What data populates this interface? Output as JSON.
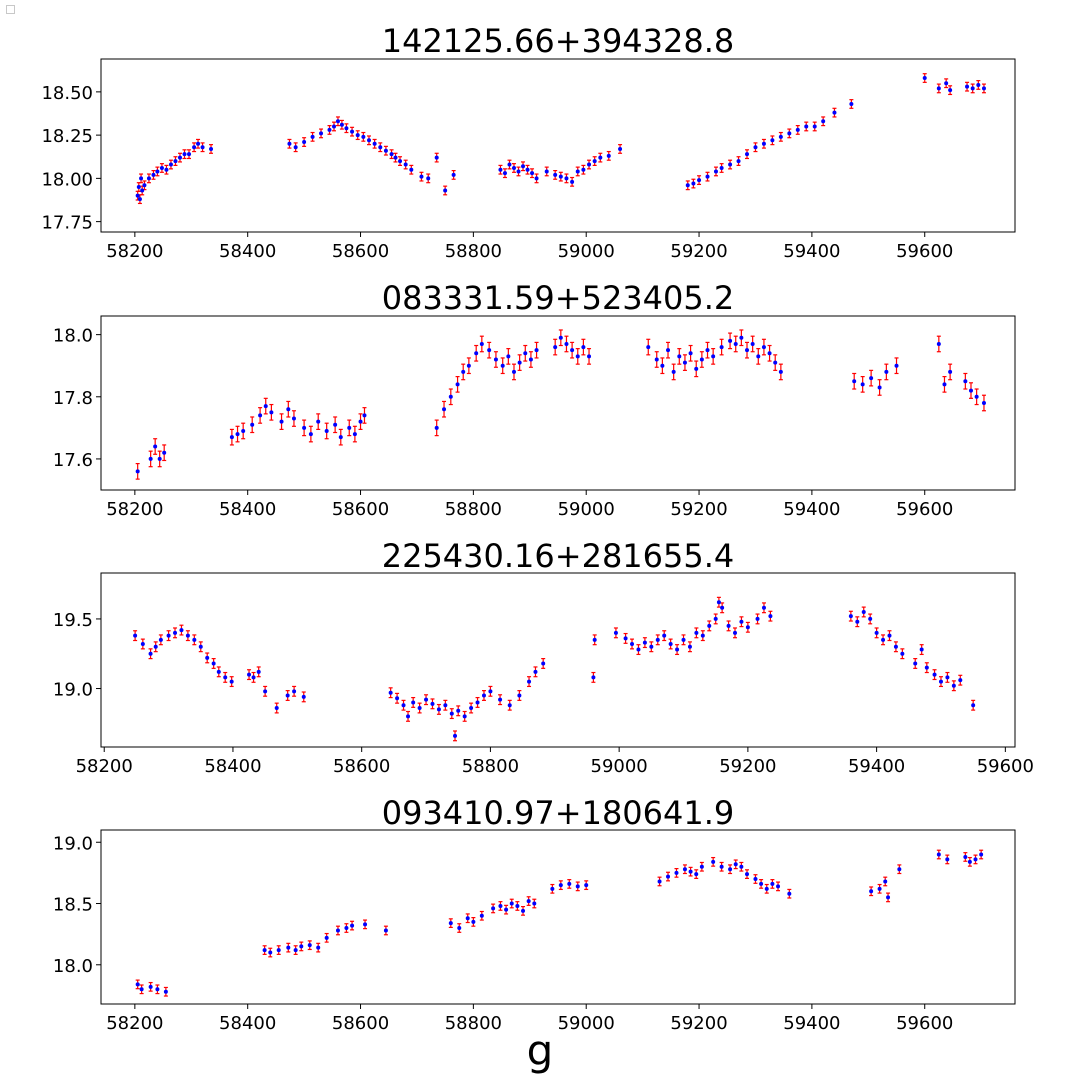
{
  "figure": {
    "band_label": "g"
  },
  "chart_data": [
    {
      "type": "scatter",
      "title": "142125.66+394328.8",
      "xlabel": "",
      "ylabel": "",
      "xlim": [
        58140,
        59760
      ],
      "ylim": [
        17.69,
        18.69
      ],
      "xticks": [
        58200,
        58400,
        58600,
        58800,
        59000,
        59200,
        59400,
        59600
      ],
      "yticks": [
        17.75,
        18.0,
        18.25,
        18.5
      ],
      "ytick_labels": [
        "17.75",
        "18.00",
        "18.25",
        "18.50"
      ],
      "grid": false,
      "x": [
        58205,
        58207,
        58209,
        58211,
        58213,
        58217,
        58225,
        58233,
        58240,
        58248,
        58256,
        58264,
        58272,
        58280,
        58288,
        58296,
        58305,
        58312,
        58320,
        58335,
        58474,
        58485,
        58500,
        58515,
        58530,
        58545,
        58553,
        58560,
        58567,
        58575,
        58585,
        58595,
        58605,
        58615,
        58625,
        58635,
        58645,
        58655,
        58662,
        58670,
        58680,
        58690,
        58708,
        58720,
        58735,
        58750,
        58765,
        58848,
        58856,
        58864,
        58872,
        58880,
        58888,
        58896,
        58904,
        58912,
        58930,
        58945,
        58955,
        58965,
        58975,
        58985,
        58995,
        59005,
        59015,
        59025,
        59040,
        59060,
        59180,
        59190,
        59200,
        59215,
        59230,
        59240,
        59255,
        59270,
        59285,
        59300,
        59315,
        59330,
        59345,
        59360,
        59375,
        59390,
        59405,
        59420,
        59440,
        59470,
        59600,
        59625,
        59638,
        59645,
        59675,
        59685,
        59695,
        59705
      ],
      "y": [
        17.9,
        17.95,
        17.88,
        18.0,
        17.93,
        17.96,
        18.0,
        18.02,
        18.04,
        18.06,
        18.05,
        18.08,
        18.1,
        18.12,
        18.14,
        18.14,
        18.18,
        18.2,
        18.18,
        18.17,
        18.2,
        18.18,
        18.21,
        18.24,
        18.26,
        18.28,
        18.3,
        18.33,
        18.31,
        18.29,
        18.27,
        18.25,
        18.24,
        18.22,
        18.2,
        18.18,
        18.16,
        18.14,
        18.12,
        18.1,
        18.08,
        18.05,
        18.01,
        18.0,
        18.12,
        17.93,
        18.02,
        18.05,
        18.03,
        18.08,
        18.06,
        18.04,
        18.07,
        18.05,
        18.03,
        18.0,
        18.04,
        18.02,
        18.01,
        18.0,
        17.98,
        18.04,
        18.05,
        18.08,
        18.1,
        18.12,
        18.13,
        18.17,
        17.96,
        17.97,
        17.99,
        18.01,
        18.04,
        18.06,
        18.08,
        18.1,
        18.14,
        18.18,
        18.2,
        18.22,
        18.24,
        18.26,
        18.28,
        18.3,
        18.3,
        18.33,
        18.38,
        18.43,
        18.58,
        18.52,
        18.55,
        18.51,
        18.53,
        18.52,
        18.54,
        18.52
      ],
      "yerr": 0.025,
      "error_color": "#ff0000",
      "marker_color": "#0000ff"
    },
    {
      "type": "scatter",
      "title": "083331.59+523405.2",
      "xlabel": "",
      "ylabel": "",
      "xlim": [
        58140,
        59760
      ],
      "ylim": [
        17.5,
        18.06
      ],
      "xticks": [
        58200,
        58400,
        58600,
        58800,
        59000,
        59200,
        59400,
        59600
      ],
      "yticks": [
        17.6,
        17.8,
        18.0
      ],
      "ytick_labels": [
        "17.6",
        "17.8",
        "18.0"
      ],
      "grid": false,
      "x": [
        58205,
        58228,
        58236,
        58244,
        58252,
        58372,
        58382,
        58392,
        58408,
        58422,
        58432,
        58442,
        58460,
        58472,
        58482,
        58500,
        58512,
        58525,
        58540,
        58555,
        58565,
        58580,
        58590,
        58600,
        58607,
        58735,
        58748,
        58760,
        58772,
        58782,
        58792,
        58805,
        58815,
        58828,
        58840,
        58852,
        58862,
        58872,
        58882,
        58892,
        58902,
        58912,
        58945,
        58955,
        58965,
        58975,
        58985,
        58995,
        59005,
        59110,
        59125,
        59135,
        59145,
        59155,
        59165,
        59175,
        59185,
        59195,
        59205,
        59215,
        59225,
        59240,
        59255,
        59265,
        59275,
        59285,
        59295,
        59305,
        59315,
        59325,
        59335,
        59345,
        59475,
        59490,
        59505,
        59520,
        59532,
        59550,
        59625,
        59635,
        59645,
        59672,
        59682,
        59692,
        59705
      ],
      "y": [
        17.56,
        17.6,
        17.64,
        17.6,
        17.62,
        17.67,
        17.68,
        17.69,
        17.71,
        17.74,
        17.77,
        17.75,
        17.72,
        17.76,
        17.73,
        17.7,
        17.68,
        17.72,
        17.69,
        17.71,
        17.67,
        17.7,
        17.68,
        17.72,
        17.74,
        17.7,
        17.76,
        17.8,
        17.84,
        17.88,
        17.9,
        17.94,
        17.97,
        17.95,
        17.92,
        17.9,
        17.93,
        17.88,
        17.91,
        17.94,
        17.92,
        17.95,
        17.96,
        17.99,
        17.97,
        17.95,
        17.93,
        17.96,
        17.93,
        17.96,
        17.92,
        17.9,
        17.95,
        17.88,
        17.93,
        17.91,
        17.94,
        17.89,
        17.92,
        17.95,
        17.93,
        17.96,
        17.98,
        17.97,
        17.99,
        17.95,
        17.97,
        17.93,
        17.96,
        17.94,
        17.91,
        17.88,
        17.85,
        17.84,
        17.86,
        17.83,
        17.88,
        17.9,
        17.97,
        17.84,
        17.88,
        17.85,
        17.82,
        17.8,
        17.78
      ],
      "yerr": 0.025,
      "error_color": "#ff0000",
      "marker_color": "#0000ff"
    },
    {
      "type": "scatter",
      "title": "225430.16+281655.4",
      "xlabel": "",
      "ylabel": "",
      "xlim": [
        58195,
        59615
      ],
      "ylim": [
        18.58,
        19.83
      ],
      "xticks": [
        58200,
        58400,
        58600,
        58800,
        59000,
        59200,
        59400,
        59600
      ],
      "yticks": [
        19.0,
        19.5
      ],
      "ytick_labels": [
        "19.0",
        "19.5"
      ],
      "grid": false,
      "x": [
        58248,
        58260,
        58272,
        58280,
        58288,
        58300,
        58310,
        58320,
        58330,
        58340,
        58350,
        58360,
        58370,
        58378,
        58388,
        58398,
        58425,
        58432,
        58440,
        58450,
        58468,
        58485,
        58495,
        58510,
        58645,
        58655,
        58665,
        58672,
        58680,
        58690,
        58700,
        58710,
        58720,
        58730,
        58740,
        58745,
        58750,
        58760,
        58770,
        58780,
        58790,
        58800,
        58815,
        58830,
        58845,
        58860,
        58870,
        58882,
        58960,
        58962,
        58995,
        59010,
        59020,
        59030,
        59040,
        59050,
        59060,
        59070,
        59080,
        59090,
        59100,
        59110,
        59120,
        59130,
        59140,
        59150,
        59155,
        59160,
        59170,
        59180,
        59190,
        59200,
        59215,
        59225,
        59235,
        59360,
        59370,
        59380,
        59390,
        59400,
        59410,
        59420,
        59430,
        59440,
        59460,
        59470,
        59478,
        59490,
        59500,
        59510,
        59520,
        59530,
        59550
      ],
      "y": [
        19.38,
        19.32,
        19.25,
        19.3,
        19.35,
        19.38,
        19.4,
        19.42,
        19.38,
        19.35,
        19.3,
        19.22,
        19.18,
        19.12,
        19.08,
        19.05,
        19.1,
        19.08,
        19.12,
        18.98,
        18.86,
        18.95,
        18.98,
        18.94,
        18.97,
        18.93,
        18.88,
        18.8,
        18.9,
        18.86,
        18.92,
        18.89,
        18.85,
        18.88,
        18.82,
        18.66,
        18.84,
        18.8,
        18.86,
        18.9,
        18.95,
        18.98,
        18.92,
        18.88,
        18.95,
        19.05,
        19.12,
        19.18,
        19.08,
        19.35,
        19.4,
        19.36,
        19.32,
        19.28,
        19.33,
        19.3,
        19.35,
        19.38,
        19.32,
        19.28,
        19.35,
        19.3,
        19.4,
        19.38,
        19.45,
        19.5,
        19.62,
        19.58,
        19.45,
        19.4,
        19.48,
        19.44,
        19.5,
        19.58,
        19.52,
        19.52,
        19.48,
        19.55,
        19.5,
        19.4,
        19.35,
        19.38,
        19.3,
        19.25,
        19.18,
        19.28,
        19.15,
        19.1,
        19.05,
        19.08,
        19.02,
        19.06,
        18.88
      ],
      "yerr": 0.035,
      "error_color": "#ff0000",
      "marker_color": "#0000ff"
    },
    {
      "type": "scatter",
      "title": "093410.97+180641.9",
      "xlabel": "",
      "ylabel": "",
      "xlim": [
        58140,
        59760
      ],
      "ylim": [
        17.68,
        19.1
      ],
      "xticks": [
        58200,
        58400,
        58600,
        58800,
        59000,
        59200,
        59400,
        59600
      ],
      "yticks": [
        18.0,
        18.5,
        19.0
      ],
      "ytick_labels": [
        "18.0",
        "18.5",
        "19.0"
      ],
      "grid": false,
      "x": [
        58205,
        58212,
        58228,
        58240,
        58255,
        58430,
        58440,
        58455,
        58472,
        58485,
        58495,
        58510,
        58525,
        58540,
        58560,
        58575,
        58585,
        58608,
        58645,
        58760,
        58775,
        58790,
        58800,
        58815,
        58835,
        58848,
        58858,
        58868,
        58878,
        58888,
        58898,
        58908,
        58940,
        58955,
        58970,
        58985,
        59000,
        59130,
        59145,
        59160,
        59175,
        59185,
        59195,
        59205,
        59225,
        59240,
        59255,
        59265,
        59275,
        59285,
        59300,
        59310,
        59320,
        59330,
        59340,
        59360,
        59505,
        59520,
        59530,
        59535,
        59555,
        59625,
        59640,
        59672,
        59680,
        59690,
        59700
      ],
      "y": [
        17.84,
        17.8,
        17.82,
        17.8,
        17.78,
        18.12,
        18.1,
        18.12,
        18.14,
        18.12,
        18.15,
        18.16,
        18.14,
        18.22,
        18.28,
        18.3,
        18.32,
        18.33,
        18.28,
        18.34,
        18.3,
        18.38,
        18.35,
        18.4,
        18.46,
        18.48,
        18.45,
        18.5,
        18.48,
        18.44,
        18.52,
        18.5,
        18.62,
        18.65,
        18.66,
        18.64,
        18.65,
        18.68,
        18.72,
        18.75,
        18.78,
        18.76,
        18.74,
        18.8,
        18.84,
        18.8,
        18.78,
        18.82,
        18.8,
        18.74,
        18.7,
        18.66,
        18.62,
        18.66,
        18.64,
        18.58,
        18.6,
        18.62,
        18.68,
        18.55,
        18.78,
        18.9,
        18.86,
        18.88,
        18.84,
        18.86,
        18.9
      ],
      "yerr": 0.035,
      "error_color": "#ff0000",
      "marker_color": "#0000ff"
    }
  ]
}
